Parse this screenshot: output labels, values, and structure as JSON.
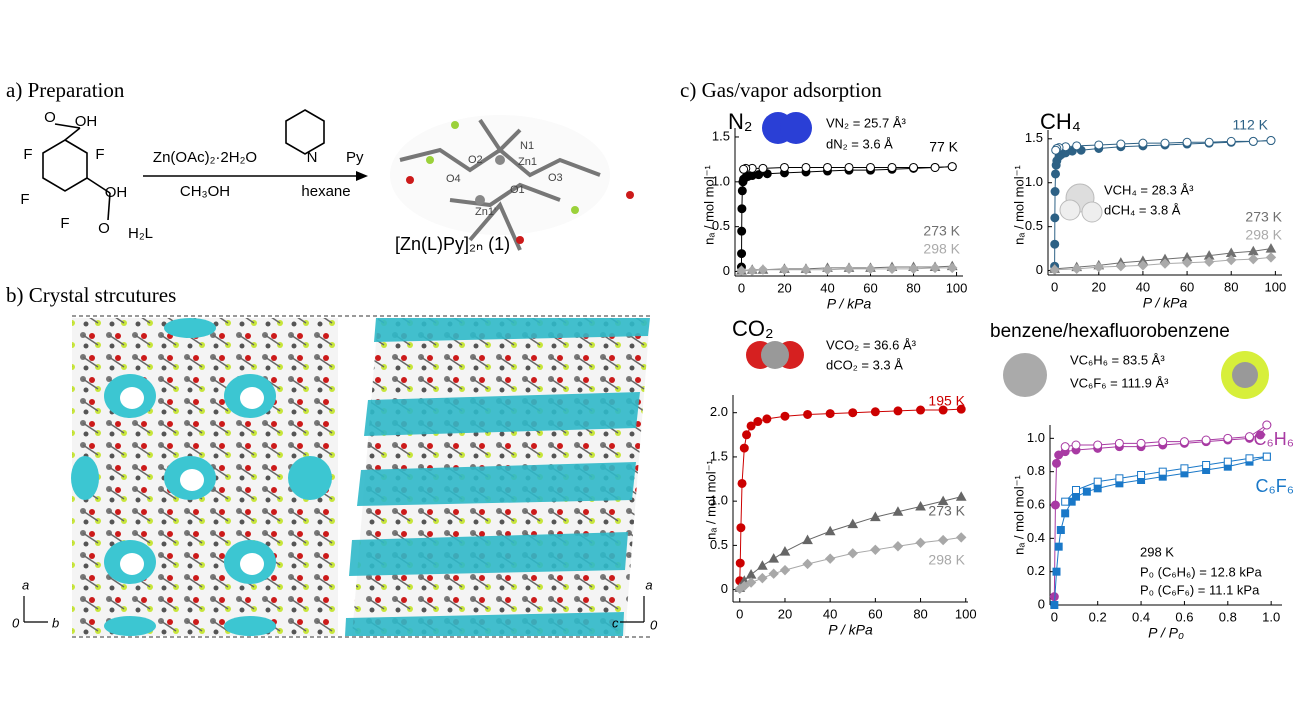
{
  "figure": {
    "panel_a": {
      "title": "a) Preparation",
      "reagent": "Zn(OAc)₂·2H₂O",
      "solvent": "CH₃OH",
      "base": "Py",
      "base_solvent": "hexane",
      "ligand": "H₂L",
      "product": "[Zn(L)Py]₂ₙ (1)",
      "ligand_atoms": [
        "O",
        "OH",
        "F",
        "F",
        "F",
        "F",
        "O",
        "OH"
      ],
      "pyridine_atom": "N",
      "crystal_atoms": [
        "N1",
        "O2",
        "Zn1",
        "O4",
        "O1",
        "O3",
        "Zn1'"
      ]
    },
    "panel_b": {
      "title": "b) Crystal strcutures",
      "left_axes": [
        "a",
        "0",
        "b"
      ],
      "right_axes": [
        "a",
        "c",
        "0"
      ]
    },
    "panel_c": {
      "title": "c) Gas/vapor adsorption"
    }
  },
  "chart_data": [
    {
      "type": "line",
      "title": "N₂",
      "x_label": "P / kPa",
      "y_label": "nₐ / mol mol⁻¹",
      "xlim": [
        -3,
        103
      ],
      "xticks": [
        0,
        20,
        40,
        60,
        80,
        100
      ],
      "ylim": [
        -0.05,
        1.6
      ],
      "yticks": [
        0,
        0.5,
        {
          "value": 1,
          "label": "1.0"
        },
        1.5
      ],
      "annotations": [
        "VN₂ = 25.7 Å³",
        "dN₂ = 3.6 Å"
      ],
      "series": [
        {
          "name": "77 K",
          "color": "#000000",
          "marker": "circle",
          "x": [
            0,
            0.05,
            0.1,
            0.2,
            0.4,
            0.7,
            1,
            2,
            3,
            5,
            8,
            12,
            20,
            30,
            40,
            50,
            60,
            70,
            80,
            90,
            98
          ],
          "values": [
            0.05,
            0.2,
            0.45,
            0.7,
            0.9,
            1.0,
            1.03,
            1.05,
            1.06,
            1.07,
            1.08,
            1.09,
            1.1,
            1.11,
            1.12,
            1.13,
            1.13,
            1.14,
            1.15,
            1.16,
            1.17
          ],
          "desorption_x": [
            98,
            90,
            80,
            70,
            60,
            50,
            40,
            30,
            20,
            10,
            5,
            2,
            1
          ],
          "desorption_values": [
            1.17,
            1.16,
            1.16,
            1.16,
            1.16,
            1.16,
            1.16,
            1.16,
            1.16,
            1.15,
            1.15,
            1.15,
            1.14
          ]
        },
        {
          "name": "273 K",
          "color": "#707070",
          "marker": "triangle",
          "x": [
            0,
            5,
            10,
            20,
            30,
            40,
            50,
            60,
            70,
            80,
            90,
            98
          ],
          "values": [
            0.01,
            0.02,
            0.02,
            0.03,
            0.03,
            0.04,
            0.04,
            0.04,
            0.05,
            0.05,
            0.05,
            0.06
          ]
        },
        {
          "name": "298 K",
          "color": "#aaaaaa",
          "marker": "diamond",
          "x": [
            0,
            5,
            10,
            20,
            30,
            40,
            50,
            60,
            70,
            80,
            90,
            98
          ],
          "values": [
            0.01,
            0.01,
            0.02,
            0.02,
            0.02,
            0.02,
            0.03,
            0.03,
            0.03,
            0.03,
            0.04,
            0.04
          ]
        }
      ]
    },
    {
      "type": "line",
      "title": "CH₄",
      "x_label": "P / kPa",
      "y_label": "nₐ / mol mol⁻¹",
      "xlim": [
        -3,
        103
      ],
      "xticks": [
        0,
        20,
        40,
        60,
        80,
        100
      ],
      "ylim": [
        -0.05,
        1.6
      ],
      "yticks": [
        0,
        0.5,
        {
          "value": 1,
          "label": "1.0"
        },
        1.5
      ],
      "annotations": [
        "VCH₄ = 28.3 Å³",
        "dCH₄ = 3.8 Å"
      ],
      "series": [
        {
          "name": "112 K",
          "color": "#2d6185",
          "marker": "circle",
          "x": [
            0,
            0.05,
            0.1,
            0.2,
            0.4,
            0.7,
            1,
            2,
            3,
            5,
            8,
            12,
            20,
            30,
            40,
            50,
            60,
            70,
            80,
            90,
            98
          ],
          "values": [
            0.05,
            0.3,
            0.6,
            0.9,
            1.1,
            1.2,
            1.25,
            1.3,
            1.32,
            1.34,
            1.36,
            1.37,
            1.39,
            1.41,
            1.42,
            1.43,
            1.44,
            1.45,
            1.46,
            1.47,
            1.48
          ],
          "desorption_x": [
            98,
            90,
            80,
            70,
            60,
            50,
            40,
            30,
            20,
            10,
            5,
            2,
            1,
            0.5
          ],
          "desorption_values": [
            1.48,
            1.47,
            1.47,
            1.46,
            1.46,
            1.45,
            1.45,
            1.44,
            1.43,
            1.42,
            1.41,
            1.4,
            1.39,
            1.37
          ]
        },
        {
          "name": "273 K",
          "color": "#707070",
          "marker": "triangle",
          "x": [
            0,
            10,
            20,
            30,
            40,
            50,
            60,
            70,
            80,
            90,
            98
          ],
          "values": [
            0.02,
            0.04,
            0.06,
            0.09,
            0.11,
            0.13,
            0.15,
            0.17,
            0.2,
            0.22,
            0.25
          ]
        },
        {
          "name": "298 K",
          "color": "#aaaaaa",
          "marker": "diamond",
          "x": [
            0,
            10,
            20,
            30,
            40,
            50,
            60,
            70,
            80,
            90,
            98
          ],
          "values": [
            0.01,
            0.02,
            0.04,
            0.05,
            0.06,
            0.08,
            0.09,
            0.1,
            0.12,
            0.13,
            0.15
          ]
        }
      ]
    },
    {
      "type": "line",
      "title": "CO₂",
      "x_label": "P / kPa",
      "y_label": "nₐ / mol mol⁻¹",
      "xlim": [
        -3,
        101
      ],
      "xticks": [
        0,
        20,
        40,
        60,
        80,
        100
      ],
      "ylim": [
        -0.14,
        2.2
      ],
      "yticks": [
        0,
        0.5,
        {
          "value": 1,
          "label": "1.0"
        },
        1.5,
        {
          "value": 2,
          "label": "2.0"
        }
      ],
      "annotations": [
        "VCO₂ = 36.6 Å³",
        "dCO₂ = 3.3 Å"
      ],
      "series": [
        {
          "name": "195 K",
          "color": "#cc0000",
          "marker": "circle",
          "x": [
            0,
            0.2,
            0.5,
            1,
            2,
            3,
            5,
            8,
            12,
            20,
            30,
            40,
            50,
            60,
            70,
            80,
            90,
            98
          ],
          "values": [
            0.1,
            0.3,
            0.7,
            1.2,
            1.6,
            1.75,
            1.85,
            1.9,
            1.93,
            1.96,
            1.98,
            1.99,
            2.0,
            2.01,
            2.02,
            2.03,
            2.03,
            2.04
          ]
        },
        {
          "name": "273 K",
          "color": "#666666",
          "marker": "triangle",
          "x": [
            0,
            2,
            5,
            10,
            15,
            20,
            30,
            40,
            50,
            60,
            70,
            80,
            90,
            98
          ],
          "values": [
            0.02,
            0.1,
            0.17,
            0.27,
            0.35,
            0.43,
            0.56,
            0.66,
            0.74,
            0.82,
            0.88,
            0.94,
            1.0,
            1.05
          ]
        },
        {
          "name": "298 K",
          "color": "#a8a8a8",
          "marker": "diamond",
          "x": [
            0,
            2,
            5,
            10,
            15,
            20,
            30,
            40,
            50,
            60,
            70,
            80,
            90,
            98
          ],
          "values": [
            0.01,
            0.04,
            0.08,
            0.13,
            0.18,
            0.22,
            0.29,
            0.35,
            0.41,
            0.45,
            0.49,
            0.53,
            0.56,
            0.59
          ]
        }
      ]
    },
    {
      "type": "line",
      "title": "benzene/hexafluorobenzene",
      "x_label": "P / P₀",
      "y_label": "nₐ / mol mol⁻¹",
      "xlim": [
        -0.02,
        1.05
      ],
      "xticks": [
        0,
        0.2,
        0.4,
        0.6,
        0.8,
        {
          "value": 1,
          "label": "1.0"
        }
      ],
      "ylim": [
        0,
        1.08
      ],
      "yticks": [
        0,
        0.2,
        0.4,
        0.6,
        0.8,
        {
          "value": 1,
          "label": "1.0"
        }
      ],
      "annotations": [
        "VC₆H₆ = 83.5 Å³",
        "VC₆F₆ = 111.9 Å³",
        "298 K",
        "P₀ (C₆H₆) = 12.8 kPa",
        "P₀ (C₆F₆) = 11.1 kPa"
      ],
      "series": [
        {
          "name": "C₆H₆",
          "color": "#a83aa3",
          "marker": "circle",
          "x": [
            0,
            0.005,
            0.01,
            0.02,
            0.05,
            0.1,
            0.2,
            0.3,
            0.4,
            0.5,
            0.6,
            0.7,
            0.8,
            0.9,
            0.95,
            0.98
          ],
          "values": [
            0.05,
            0.6,
            0.85,
            0.9,
            0.92,
            0.93,
            0.94,
            0.95,
            0.95,
            0.96,
            0.97,
            0.98,
            0.99,
            1.0,
            1.02,
            1.08
          ],
          "desorption_x": [
            0.98,
            0.9,
            0.8,
            0.7,
            0.6,
            0.5,
            0.4,
            0.3,
            0.2,
            0.1,
            0.05
          ],
          "desorption_values": [
            1.08,
            1.01,
            1.0,
            0.99,
            0.98,
            0.98,
            0.97,
            0.97,
            0.96,
            0.96,
            0.95
          ]
        },
        {
          "name": "C₆F₆",
          "color": "#1a78c8",
          "marker": "square",
          "x": [
            0,
            0.01,
            0.02,
            0.03,
            0.05,
            0.08,
            0.1,
            0.15,
            0.2,
            0.3,
            0.4,
            0.5,
            0.6,
            0.7,
            0.8,
            0.9,
            0.98
          ],
          "values": [
            0,
            0.2,
            0.35,
            0.45,
            0.55,
            0.62,
            0.65,
            0.68,
            0.7,
            0.73,
            0.75,
            0.77,
            0.79,
            0.81,
            0.83,
            0.86,
            0.89
          ],
          "desorption_x": [
            0.98,
            0.9,
            0.8,
            0.7,
            0.6,
            0.5,
            0.4,
            0.3,
            0.2,
            0.1,
            0.05
          ],
          "desorption_values": [
            0.89,
            0.88,
            0.86,
            0.84,
            0.82,
            0.8,
            0.78,
            0.76,
            0.74,
            0.69,
            0.62
          ]
        }
      ]
    }
  ]
}
